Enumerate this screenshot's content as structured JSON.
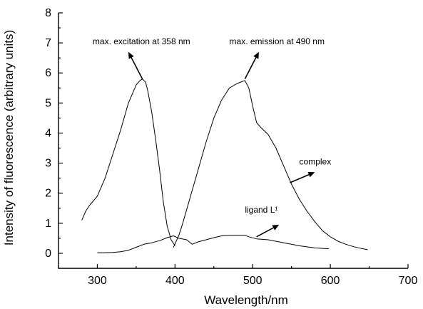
{
  "chart_data": {
    "type": "line",
    "xlabel": "Wavelength/nm",
    "ylabel": "Intensity of fluorescence (arbitrary units)",
    "xlim": [
      250,
      700
    ],
    "ylim": [
      -0.5,
      8
    ],
    "xticks": [
      300,
      400,
      500,
      600,
      700
    ],
    "yticks": [
      0,
      1,
      2,
      3,
      4,
      5,
      6,
      7,
      8
    ],
    "grid": false,
    "series": [
      {
        "x": [
          280,
          285,
          290,
          300,
          310,
          320,
          330,
          340,
          350,
          355,
          358,
          362,
          365,
          370,
          375,
          380,
          385,
          390,
          395,
          400
        ],
        "y": [
          1.1,
          1.4,
          1.6,
          1.9,
          2.5,
          3.3,
          4.1,
          5.0,
          5.6,
          5.75,
          5.8,
          5.7,
          5.4,
          4.7,
          3.8,
          2.8,
          1.7,
          0.9,
          0.45,
          0.25
        ]
      },
      {
        "x": [
          398,
          405,
          410,
          420,
          430,
          440,
          450,
          460,
          470,
          480,
          485,
          490,
          495,
          500,
          505,
          510,
          520,
          530,
          540,
          550,
          560,
          570,
          580,
          590,
          600,
          610,
          620,
          630,
          640,
          648
        ],
        "y": [
          0.2,
          0.6,
          1.0,
          1.9,
          2.8,
          3.7,
          4.5,
          5.1,
          5.5,
          5.65,
          5.7,
          5.75,
          5.5,
          4.9,
          4.35,
          4.2,
          3.95,
          3.5,
          2.9,
          2.3,
          1.8,
          1.4,
          1.05,
          0.75,
          0.55,
          0.4,
          0.3,
          0.22,
          0.16,
          0.12
        ]
      },
      {
        "x": [
          300,
          310,
          320,
          330,
          340,
          350,
          360,
          370,
          380,
          390,
          398,
          405,
          415,
          422,
          430,
          440,
          450,
          460,
          470,
          480,
          490,
          495,
          505,
          520,
          540,
          560,
          580,
          598
        ],
        "y": [
          0.02,
          0.02,
          0.03,
          0.05,
          0.1,
          0.2,
          0.3,
          0.35,
          0.42,
          0.52,
          0.58,
          0.5,
          0.45,
          0.3,
          0.38,
          0.45,
          0.52,
          0.58,
          0.6,
          0.6,
          0.6,
          0.55,
          0.48,
          0.45,
          0.35,
          0.25,
          0.18,
          0.15
        ]
      }
    ],
    "annotations": [
      {
        "text": "max. excitation at 358 nm",
        "x": 294,
        "y": 6.95
      },
      {
        "text": "max. emission at 490 nm",
        "x": 470,
        "y": 6.95
      },
      {
        "text": "complex",
        "x": 560,
        "y": 2.95
      },
      {
        "text": "ligand L¹",
        "x": 490,
        "y": 1.35
      }
    ],
    "arrows": [
      {
        "from": [
          358,
          5.8
        ],
        "to": [
          340,
          6.7
        ]
      },
      {
        "from": [
          490,
          5.8
        ],
        "to": [
          508,
          6.7
        ]
      },
      {
        "from": [
          548,
          2.35
        ],
        "to": [
          580,
          2.7
        ]
      },
      {
        "from": [
          505,
          0.55
        ],
        "to": [
          534,
          0.95
        ]
      }
    ]
  }
}
